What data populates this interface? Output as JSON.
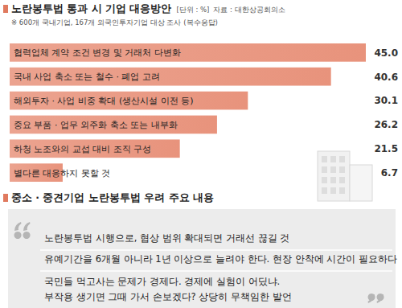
{
  "chart_data": {
    "type": "bar",
    "orientation": "horizontal",
    "title": "노란봉투법 통과 시 기업 대응방안",
    "unit": "[단위 : %]",
    "source": "자료 : 대한상공회의소",
    "note": "※ 600개 국내기업, 167개 외국인투자기업 대상 조사 (복수응답)",
    "categories": [
      "협력업체 계약 조건 변경 및 거래처 다변화",
      "국내 사업 축소 또는 철수 · 폐업 고려",
      "해외투자 · 사업 비중 확대 (생산시설 이전 등)",
      "중요 부품 · 업무 외주화 축소 또는 내부화",
      "하청 노조와의 교섭 대비 조직 구성",
      "별다른 대응하지 못할 것"
    ],
    "values": [
      45.0,
      40.6,
      30.1,
      26.2,
      21.5,
      6.7
    ],
    "value_labels": [
      "45.0",
      "40.6",
      "30.1",
      "26.2",
      "21.5",
      "6.7"
    ],
    "color": "#e8937c",
    "xlim": [
      0,
      45
    ],
    "data_labels": true,
    "tick_labels": false
  },
  "concerns": {
    "title": "중소 · 중견기업 노란봉투법 우려 주요 내용",
    "quotes": [
      [
        "노란봉투법 시행으로, 협상 범위 확대되면 거래선 끊길 것"
      ],
      [
        "유예기간을 6개월 아니라 1년 이상으로 늘려야 한다. 현장 안착에 시간이 필요하다"
      ],
      [
        "국민들 먹고사는 문제가 경제다. 경제에 실험이 어딨냐.",
        "부작용 생기면 그때 가서 손보겠다? 상당히 무책임한 발언"
      ]
    ]
  }
}
